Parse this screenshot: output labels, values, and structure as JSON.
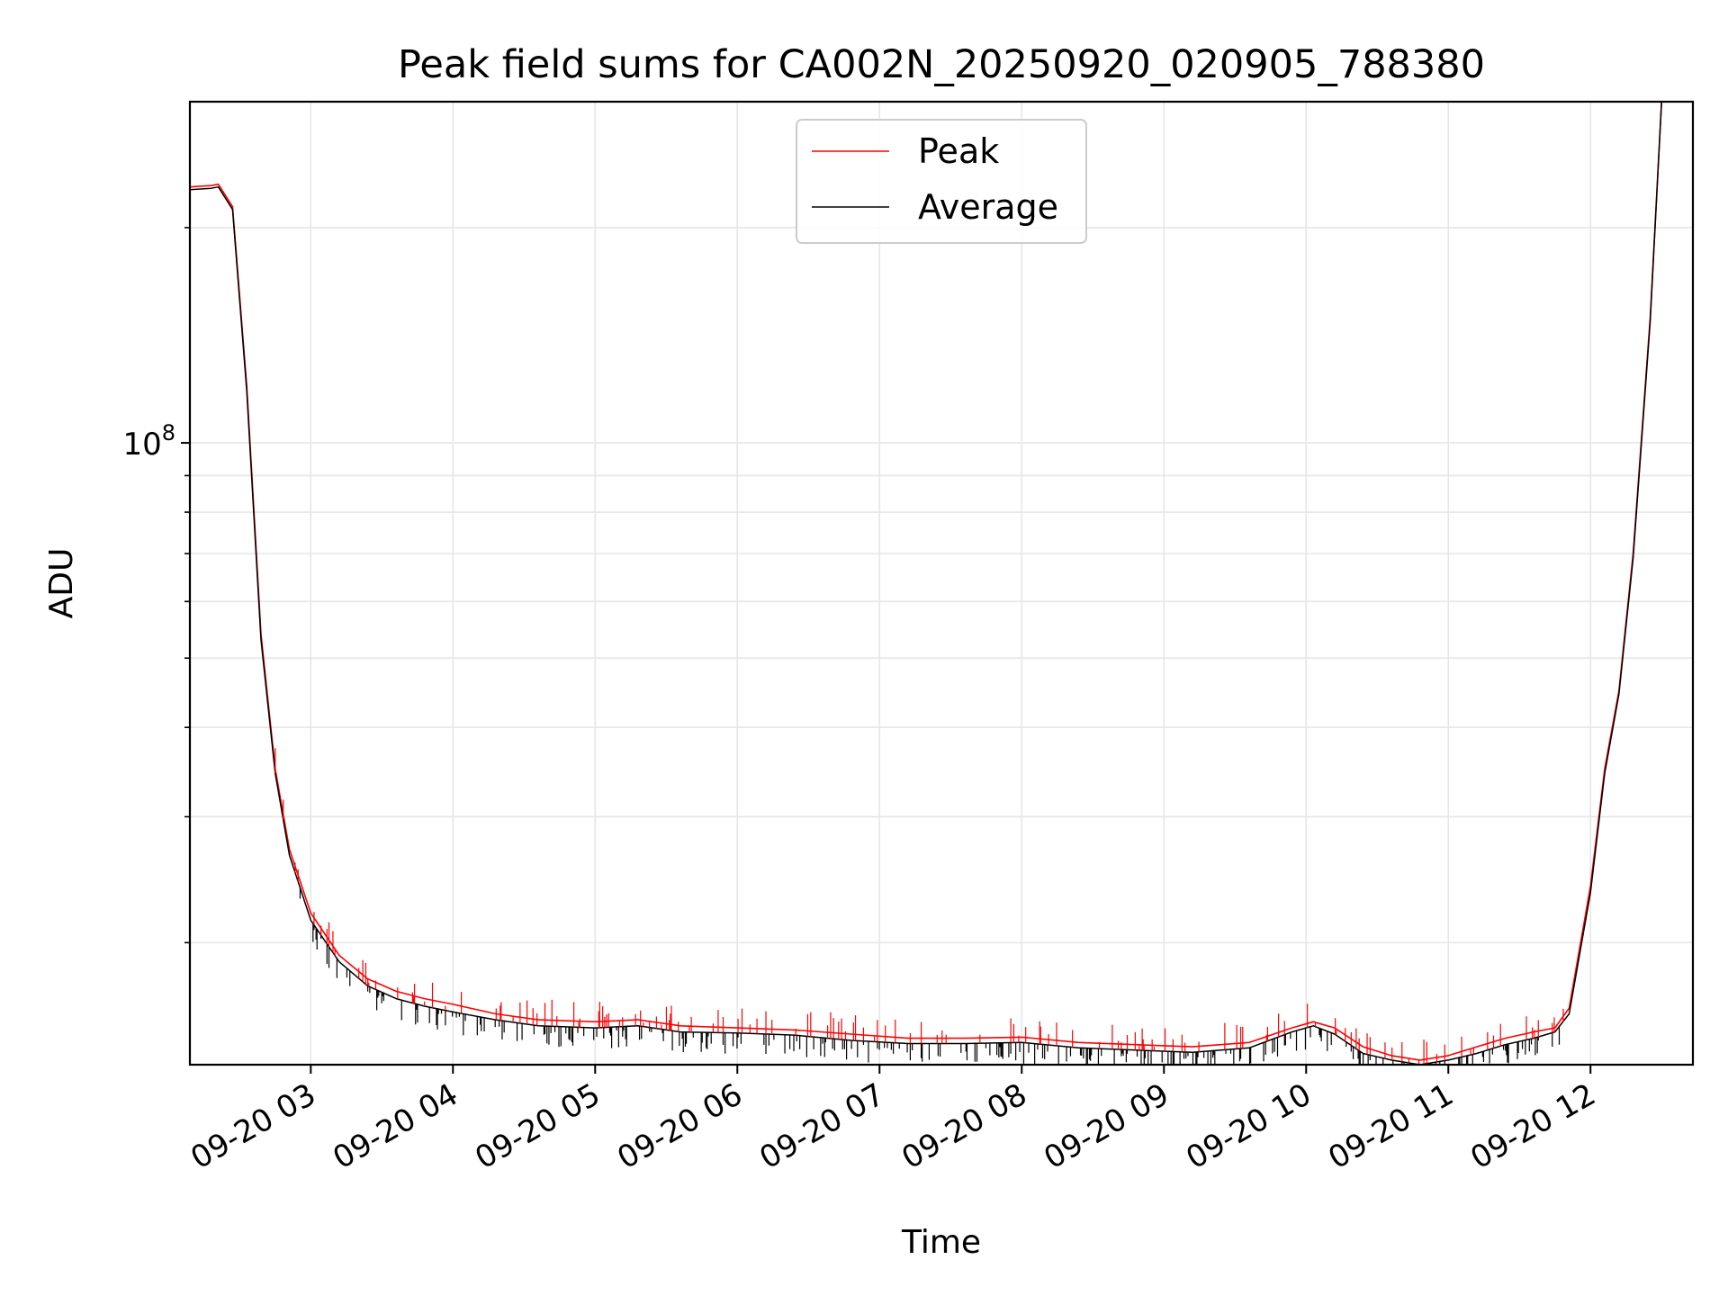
{
  "chart_data": {
    "type": "line",
    "title": "Peak field sums for CA002N_20250920_020905_788380",
    "xlabel": "Time",
    "ylabel": "ADU",
    "yscale": "log",
    "ylim": [
      13500000,
      300000000
    ],
    "x_unit": "hours since 09-20 00:00",
    "xlim": [
      2.15,
      12.72
    ],
    "grid": true,
    "legend_position": "upper-center",
    "x_ticks": [
      {
        "value": 3,
        "label": "09-20 03"
      },
      {
        "value": 4,
        "label": "09-20 04"
      },
      {
        "value": 5,
        "label": "09-20 05"
      },
      {
        "value": 6,
        "label": "09-20 06"
      },
      {
        "value": 7,
        "label": "09-20 07"
      },
      {
        "value": 8,
        "label": "09-20 08"
      },
      {
        "value": 9,
        "label": "09-20 09"
      },
      {
        "value": 10,
        "label": "09-20 10"
      },
      {
        "value": 11,
        "label": "09-20 11"
      },
      {
        "value": 12,
        "label": "09-20 12"
      }
    ],
    "y_major_ticks": [
      {
        "value": 100000000,
        "base": "10",
        "exp": "8"
      }
    ],
    "y_minor_ticks": [
      20000000,
      30000000,
      40000000,
      50000000,
      60000000,
      70000000,
      80000000,
      90000000,
      200000000
    ],
    "series": [
      {
        "name": "Peak",
        "color": "#ff0000",
        "x": [
          2.15,
          2.3,
          2.35,
          2.45,
          2.55,
          2.65,
          2.75,
          2.85,
          3.0,
          3.2,
          3.4,
          3.6,
          3.8,
          4.0,
          4.3,
          4.6,
          5.0,
          5.3,
          5.6,
          6.0,
          6.4,
          6.8,
          7.2,
          7.6,
          8.0,
          8.4,
          8.8,
          9.2,
          9.6,
          9.9,
          10.05,
          10.2,
          10.4,
          10.6,
          10.8,
          11.0,
          11.2,
          11.4,
          11.6,
          11.75,
          11.85,
          12.0,
          12.1,
          12.2,
          12.3,
          12.42,
          12.5
        ],
        "y": [
          228000000,
          229000000,
          230000000,
          214000000,
          120000000,
          54000000,
          35000000,
          27000000,
          22000000,
          19200000,
          17800000,
          17100000,
          16700000,
          16400000,
          15900000,
          15600000,
          15500000,
          15600000,
          15300000,
          15200000,
          15100000,
          14900000,
          14700000,
          14700000,
          14750000,
          14500000,
          14400000,
          14300000,
          14500000,
          15200000,
          15500000,
          15200000,
          14300000,
          13900000,
          13700000,
          13900000,
          14300000,
          14700000,
          15000000,
          15200000,
          16200000,
          24000000,
          35000000,
          45000000,
          70000000,
          150000000,
          300000000
        ]
      },
      {
        "name": "Average",
        "color": "#000000",
        "x": [
          2.15,
          2.3,
          2.35,
          2.45,
          2.55,
          2.65,
          2.75,
          2.85,
          3.0,
          3.2,
          3.4,
          3.6,
          3.8,
          4.0,
          4.3,
          4.6,
          5.0,
          5.3,
          5.6,
          6.0,
          6.4,
          6.8,
          7.2,
          7.6,
          8.0,
          8.4,
          8.8,
          9.2,
          9.6,
          9.9,
          10.05,
          10.2,
          10.4,
          10.6,
          10.8,
          11.0,
          11.2,
          11.4,
          11.6,
          11.75,
          11.85,
          12.0,
          12.1,
          12.2,
          12.3,
          12.42,
          12.5
        ],
        "y": [
          226000000,
          227000000,
          228000000,
          212000000,
          118000000,
          53000000,
          34500000,
          26500000,
          21500000,
          18800000,
          17400000,
          16700000,
          16300000,
          16000000,
          15600000,
          15300000,
          15200000,
          15300000,
          15000000,
          14950000,
          14850000,
          14600000,
          14450000,
          14450000,
          14500000,
          14250000,
          14150000,
          14050000,
          14250000,
          15000000,
          15300000,
          14900000,
          14000000,
          13700000,
          13500000,
          13700000,
          14000000,
          14400000,
          14700000,
          15000000,
          15900000,
          23500000,
          34500000,
          44500000,
          69000000,
          148000000,
          300000000
        ]
      }
    ]
  }
}
